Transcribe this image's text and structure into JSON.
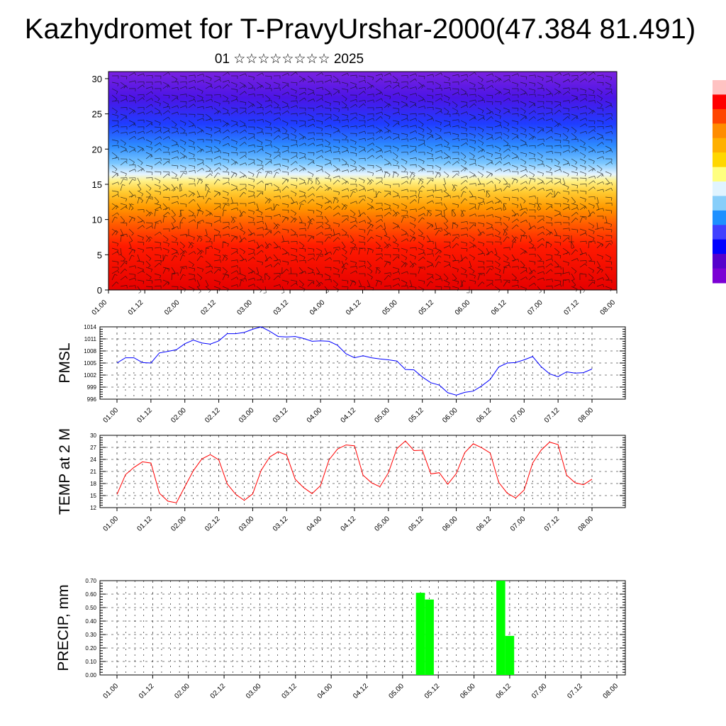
{
  "title": "Kazhydromet for T-PravyUrshar-2000(47.384 81.491)",
  "subtitle": "01 ☆☆☆☆☆☆☆☆ 2025",
  "time_ticks": [
    "01.00",
    "01.12",
    "02.00",
    "02.12",
    "03.00",
    "03.12",
    "04.00",
    "04.12",
    "05.00",
    "05.12",
    "06.00",
    "06.12",
    "07.00",
    "07.12",
    "08.00"
  ],
  "colors": {
    "pmsl_line": "#0000ff",
    "temp_line": "#ff0000",
    "precip_bar": "#00ff00",
    "colorbar": [
      "#ffc2c2",
      "#ff0000",
      "#ff4500",
      "#ff8c00",
      "#ffb000",
      "#ffd700",
      "#ffff80",
      "#e0f4ff",
      "#87cefa",
      "#1e90ff",
      "#4040ff",
      "#0000ff",
      "#5500cc",
      "#7b00d4"
    ]
  },
  "chart_data": [
    {
      "type": "heatmap",
      "title": "",
      "ylabel": "",
      "ylim": [
        0,
        31
      ],
      "yticks": [
        0,
        5,
        10,
        15,
        20,
        25,
        30
      ],
      "x_categories": [
        "01.00",
        "01.12",
        "02.00",
        "02.12",
        "03.00",
        "03.12",
        "04.00",
        "04.12",
        "05.00",
        "05.12",
        "06.00",
        "06.12",
        "07.00",
        "07.12",
        "08.00"
      ],
      "levels_bottom_to_top": [
        {
          "from": 0,
          "to": 8,
          "color": "red"
        },
        {
          "from": 8,
          "to": 13,
          "color": "orange"
        },
        {
          "from": 13,
          "to": 16,
          "color": "yellow"
        },
        {
          "from": 16,
          "to": 18,
          "color": "light blue"
        },
        {
          "from": 18,
          "to": 23,
          "color": "blue"
        },
        {
          "from": 23,
          "to": 31,
          "color": "violet"
        }
      ],
      "overlay": "wind barbs"
    },
    {
      "type": "line",
      "ylabel": "PMSL",
      "ylim": [
        996,
        1014
      ],
      "yticks": [
        996,
        999,
        1002,
        1005,
        1008,
        1011,
        1014
      ],
      "x_step_hours": 3,
      "series": [
        {
          "values": [
            1005,
            1006.3,
            1006.3,
            1005.1,
            1005,
            1007.5,
            1007.9,
            1008.3,
            1009.8,
            1010.7,
            1010,
            1009.7,
            1010.5,
            1012.3,
            1012.3,
            1012.6,
            1013.4,
            1014,
            1012.9,
            1011.6,
            1011.5,
            1011.6,
            1011.1,
            1010.4,
            1010.5,
            1010.4,
            1009.4,
            1007.3,
            1006.3,
            1006.8,
            1006.3,
            1006,
            1005.8,
            1005.5,
            1003.4,
            1003.3,
            1001.5,
            1000.1,
            999.5,
            997.6,
            997,
            997.7,
            998,
            999.3,
            1000.9,
            1004,
            1005,
            1005.1,
            1005.8,
            1006.6,
            1004.1,
            1002.3,
            1001.6,
            1002.8,
            1002.5,
            1002.6,
            1003.5
          ]
        }
      ]
    },
    {
      "type": "line",
      "ylabel": "TEMP at 2 M",
      "ylim": [
        12,
        30
      ],
      "yticks": [
        12,
        15,
        18,
        21,
        24,
        27,
        30
      ],
      "x_step_hours": 3,
      "series": [
        {
          "values": [
            15.3,
            20.2,
            22,
            23.4,
            23.1,
            15.6,
            13.6,
            13.2,
            17.2,
            21.2,
            24.1,
            25.2,
            23.9,
            17.9,
            15.3,
            13.8,
            15.4,
            21.3,
            24.6,
            25.9,
            25.1,
            19.1,
            17,
            15.5,
            17.5,
            23.9,
            26.6,
            27.6,
            27.4,
            20.1,
            18.2,
            17.2,
            20.7,
            26.7,
            28.6,
            26.2,
            26.3,
            20.4,
            20.7,
            17.8,
            20.5,
            25.7,
            27.9,
            26.9,
            25.6,
            18.3,
            15.6,
            14.4,
            16.4,
            23.1,
            26.3,
            28.3,
            27.7,
            20.1,
            18.2,
            17.7,
            19.1
          ]
        }
      ]
    },
    {
      "type": "bar",
      "ylabel": "PRECIP, mm",
      "ylim": [
        0,
        0.7
      ],
      "yticks": [
        "0.00",
        "0.10",
        "0.20",
        "0.30",
        "0.40",
        "0.50",
        "0.60",
        "0.70"
      ],
      "bars": [
        {
          "time": "05.06",
          "value": 0.61
        },
        {
          "time": "05.09",
          "value": 0.56
        },
        {
          "time": "06.09",
          "value": 0.7
        },
        {
          "time": "06.12",
          "value": 0.29
        }
      ]
    }
  ]
}
